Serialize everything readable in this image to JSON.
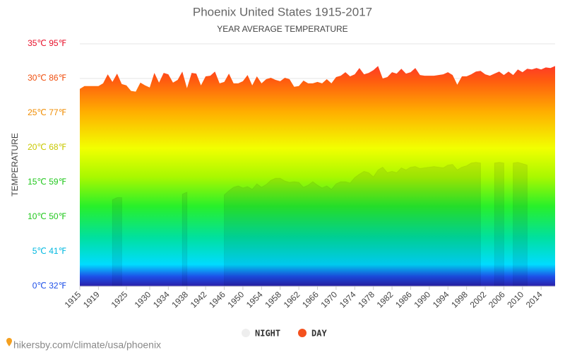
{
  "chart_data": {
    "type": "area",
    "title": "Phoenix United States 1915-2017",
    "subtitle": "YEAR AVERAGE TEMPERATURE",
    "y_label": "TEMPERATURE",
    "source": "hikersby.com/climate/usa/phoenix",
    "x": [
      1915,
      1916,
      1917,
      1918,
      1919,
      1920,
      1921,
      1922,
      1923,
      1924,
      1925,
      1926,
      1927,
      1928,
      1929,
      1930,
      1931,
      1932,
      1933,
      1934,
      1935,
      1936,
      1937,
      1938,
      1939,
      1940,
      1941,
      1942,
      1943,
      1944,
      1945,
      1946,
      1947,
      1948,
      1949,
      1950,
      1951,
      1952,
      1953,
      1954,
      1955,
      1956,
      1957,
      1958,
      1959,
      1960,
      1961,
      1962,
      1963,
      1964,
      1965,
      1966,
      1967,
      1968,
      1969,
      1970,
      1971,
      1972,
      1973,
      1974,
      1975,
      1976,
      1977,
      1978,
      1979,
      1980,
      1981,
      1982,
      1983,
      1984,
      1985,
      1986,
      1987,
      1988,
      1989,
      1990,
      1991,
      1992,
      1993,
      1994,
      1995,
      1996,
      1997,
      1998,
      1999,
      2000,
      2001,
      2002,
      2003,
      2004,
      2005,
      2006,
      2007,
      2008,
      2009,
      2010,
      2011,
      2012,
      2013,
      2014,
      2015,
      2016,
      2017
    ],
    "series": [
      {
        "name": "DAY",
        "color": "#f4511e",
        "values": [
          28.5,
          28.9,
          28.9,
          28.9,
          28.9,
          29.3,
          30.6,
          29.5,
          30.7,
          29.2,
          29.0,
          28.2,
          28.1,
          29.4,
          29.0,
          28.7,
          30.8,
          29.4,
          30.8,
          30.6,
          29.4,
          29.8,
          31.0,
          28.6,
          30.8,
          30.7,
          29.0,
          30.3,
          30.4,
          31.0,
          29.3,
          29.5,
          30.7,
          29.3,
          29.3,
          29.6,
          30.5,
          29.0,
          30.3,
          29.3,
          29.9,
          30.1,
          29.8,
          29.6,
          30.1,
          29.9,
          28.8,
          28.9,
          29.7,
          29.3,
          29.3,
          29.5,
          29.3,
          29.9,
          29.3,
          30.2,
          30.4,
          30.9,
          30.3,
          30.6,
          31.5,
          30.6,
          30.8,
          31.2,
          31.8,
          30.0,
          30.2,
          30.9,
          30.7,
          31.4,
          30.7,
          30.9,
          31.5,
          30.5,
          30.4,
          30.4,
          30.4,
          30.5,
          30.6,
          30.9,
          30.5,
          29.1,
          30.3,
          30.3,
          30.6,
          31.0,
          31.1,
          30.6,
          30.4,
          30.7,
          31.0,
          30.5,
          31.0,
          30.5,
          31.3,
          30.9,
          31.4,
          31.3,
          31.5,
          31.3,
          31.6,
          31.5,
          31.8
        ]
      },
      {
        "name": "NIGHT",
        "color": "#eeeeee",
        "values": [
          null,
          null,
          null,
          null,
          null,
          null,
          null,
          12.5,
          12.8,
          12.8,
          null,
          null,
          null,
          null,
          null,
          null,
          null,
          null,
          null,
          null,
          null,
          null,
          13.3,
          13.6,
          null,
          null,
          null,
          null,
          null,
          null,
          null,
          13.2,
          13.8,
          14.3,
          14.5,
          14.2,
          14.4,
          14.0,
          14.8,
          14.3,
          14.7,
          15.3,
          15.6,
          15.6,
          15.2,
          15.0,
          15.1,
          15.0,
          14.3,
          14.6,
          15.1,
          14.6,
          14.2,
          14.5,
          14.0,
          14.8,
          15.1,
          15.1,
          14.9,
          15.7,
          16.2,
          16.6,
          16.4,
          15.8,
          16.8,
          17.2,
          16.4,
          16.6,
          16.4,
          17.1,
          16.8,
          17.2,
          17.3,
          17.0,
          17.1,
          17.2,
          17.3,
          17.2,
          17.1,
          17.5,
          17.6,
          16.8,
          17.2,
          17.4,
          17.8,
          17.9,
          17.8,
          null,
          null,
          17.8,
          17.9,
          17.8,
          null,
          17.8,
          17.9,
          17.7,
          17.5,
          null,
          null,
          null,
          null,
          null,
          null
        ]
      }
    ],
    "xlim": [
      1915,
      2017
    ],
    "xticks": [
      1915,
      1919,
      1925,
      1930,
      1934,
      1938,
      1942,
      1946,
      1950,
      1954,
      1958,
      1962,
      1966,
      1970,
      1974,
      1978,
      1982,
      1986,
      1990,
      1994,
      1998,
      2002,
      2006,
      2010,
      2014
    ],
    "ylim": [
      0,
      35
    ],
    "yticks": [
      {
        "value": 0,
        "label": "0℃ 32℉"
      },
      {
        "value": 5,
        "label": "5℃ 41℉"
      },
      {
        "value": 10,
        "label": "10℃ 50℉"
      },
      {
        "value": 15,
        "label": "15℃ 59℉"
      },
      {
        "value": 20,
        "label": "20℃ 68℉"
      },
      {
        "value": 25,
        "label": "25℃ 77℉"
      },
      {
        "value": 30,
        "label": "30℃ 86℉"
      },
      {
        "value": 35,
        "label": "35℃ 95℉"
      }
    ],
    "grid": true,
    "legend": "bottom"
  }
}
